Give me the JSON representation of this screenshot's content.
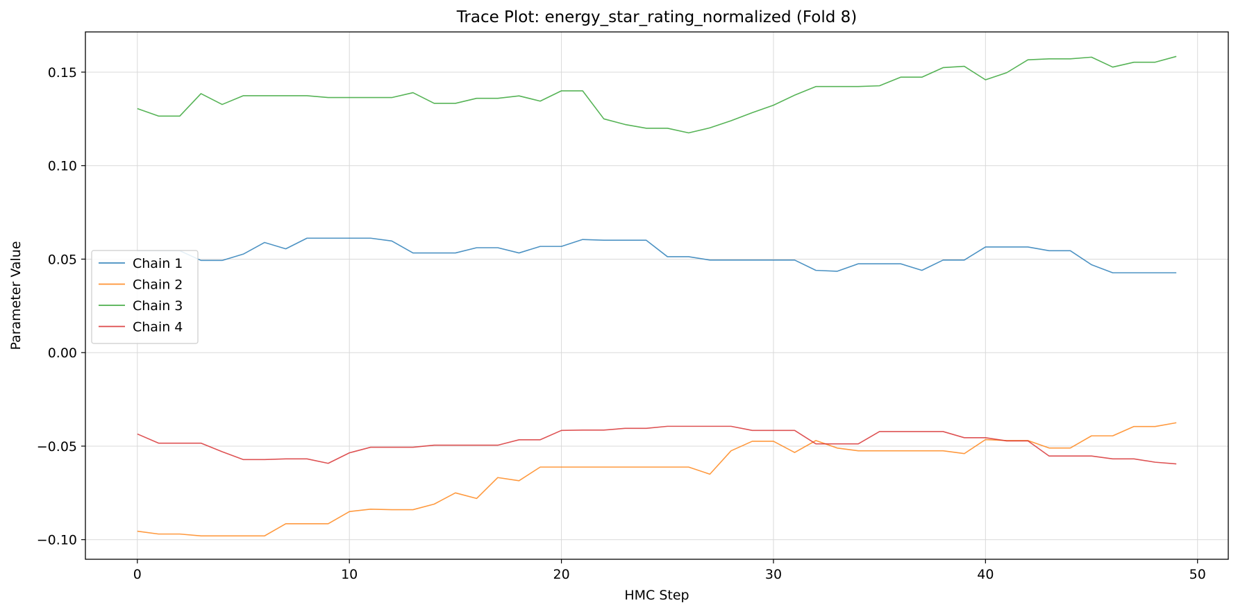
{
  "chart_data": {
    "type": "line",
    "title": "Trace Plot: energy_star_rating_normalized (Fold 8)",
    "xlabel": "HMC Step",
    "ylabel": "Parameter Value",
    "xlim": [
      -2.45,
      51.45
    ],
    "ylim": [
      -0.1105,
      0.1715
    ],
    "xticks": [
      0,
      10,
      20,
      30,
      40,
      50
    ],
    "xtick_labels": [
      "0",
      "10",
      "20",
      "30",
      "40",
      "50"
    ],
    "yticks": [
      -0.1,
      -0.05,
      0.0,
      0.05,
      0.1,
      0.15
    ],
    "ytick_labels": [
      "−0.10",
      "−0.05",
      "0.00",
      "0.05",
      "0.10",
      "0.15"
    ],
    "grid": true,
    "legend_position": "center-left",
    "x": [
      0,
      1,
      2,
      3,
      4,
      5,
      6,
      7,
      8,
      9,
      10,
      11,
      12,
      13,
      14,
      15,
      16,
      17,
      18,
      19,
      20,
      21,
      22,
      23,
      24,
      25,
      26,
      27,
      28,
      29,
      30,
      31,
      32,
      33,
      34,
      35,
      36,
      37,
      38,
      39,
      40,
      41,
      42,
      43,
      44,
      45,
      46,
      47,
      48,
      49
    ],
    "series": [
      {
        "name": "Chain 1",
        "color": "#1f77b4",
        "values": [
          0.0545,
          0.0545,
          0.0545,
          0.0493,
          0.0493,
          0.0527,
          0.0589,
          0.0555,
          0.0612,
          0.0612,
          0.0612,
          0.0612,
          0.0597,
          0.0533,
          0.0533,
          0.0533,
          0.0561,
          0.0561,
          0.0533,
          0.0568,
          0.0568,
          0.0605,
          0.0601,
          0.0601,
          0.0601,
          0.0513,
          0.0513,
          0.0495,
          0.0495,
          0.0495,
          0.0495,
          0.0495,
          0.044,
          0.0435,
          0.0475,
          0.0475,
          0.0475,
          0.044,
          0.0495,
          0.0495,
          0.0565,
          0.0565,
          0.0565,
          0.0545,
          0.0545,
          0.047,
          0.0427,
          0.0427,
          0.0427,
          0.0427
        ]
      },
      {
        "name": "Chain 2",
        "color": "#ff7f0e",
        "values": [
          -0.0955,
          -0.097,
          -0.097,
          -0.098,
          -0.098,
          -0.098,
          -0.098,
          -0.0915,
          -0.0915,
          -0.0915,
          -0.085,
          -0.0837,
          -0.084,
          -0.084,
          -0.081,
          -0.075,
          -0.078,
          -0.0668,
          -0.0685,
          -0.0612,
          -0.0612,
          -0.0612,
          -0.0612,
          -0.0612,
          -0.0612,
          -0.0612,
          -0.0612,
          -0.065,
          -0.0525,
          -0.0474,
          -0.0474,
          -0.0534,
          -0.047,
          -0.051,
          -0.0525,
          -0.0525,
          -0.0525,
          -0.0525,
          -0.0525,
          -0.054,
          -0.0465,
          -0.047,
          -0.047,
          -0.051,
          -0.051,
          -0.0445,
          -0.0445,
          -0.0395,
          -0.0395,
          -0.0375
        ]
      },
      {
        "name": "Chain 3",
        "color": "#2ca02c",
        "values": [
          0.1305,
          0.1265,
          0.1265,
          0.1385,
          0.1327,
          0.1374,
          0.1374,
          0.1374,
          0.1374,
          0.1364,
          0.1364,
          0.1364,
          0.1364,
          0.139,
          0.1333,
          0.1333,
          0.136,
          0.136,
          0.1373,
          0.1345,
          0.14,
          0.14,
          0.125,
          0.122,
          0.12,
          0.12,
          0.1175,
          0.1202,
          0.124,
          0.1283,
          0.1323,
          0.1377,
          0.1423,
          0.1423,
          0.1423,
          0.1427,
          0.1473,
          0.1473,
          0.1524,
          0.1531,
          0.1459,
          0.1497,
          0.1566,
          0.1571,
          0.1571,
          0.158,
          0.1527,
          0.1553,
          0.1553,
          0.1584
        ]
      },
      {
        "name": "Chain 4",
        "color": "#d62728",
        "values": [
          -0.0435,
          -0.0484,
          -0.0484,
          -0.0484,
          -0.053,
          -0.0572,
          -0.0572,
          -0.0568,
          -0.0568,
          -0.0592,
          -0.0536,
          -0.0506,
          -0.0506,
          -0.0506,
          -0.0495,
          -0.0495,
          -0.0495,
          -0.0495,
          -0.0466,
          -0.0466,
          -0.0416,
          -0.0414,
          -0.0414,
          -0.0405,
          -0.0405,
          -0.0394,
          -0.0394,
          -0.0394,
          -0.0394,
          -0.0416,
          -0.0416,
          -0.0416,
          -0.0488,
          -0.0488,
          -0.0488,
          -0.0422,
          -0.0422,
          -0.0422,
          -0.0422,
          -0.0455,
          -0.0455,
          -0.0472,
          -0.0472,
          -0.0553,
          -0.0553,
          -0.0553,
          -0.0568,
          -0.0568,
          -0.0586,
          -0.0595
        ]
      }
    ]
  }
}
